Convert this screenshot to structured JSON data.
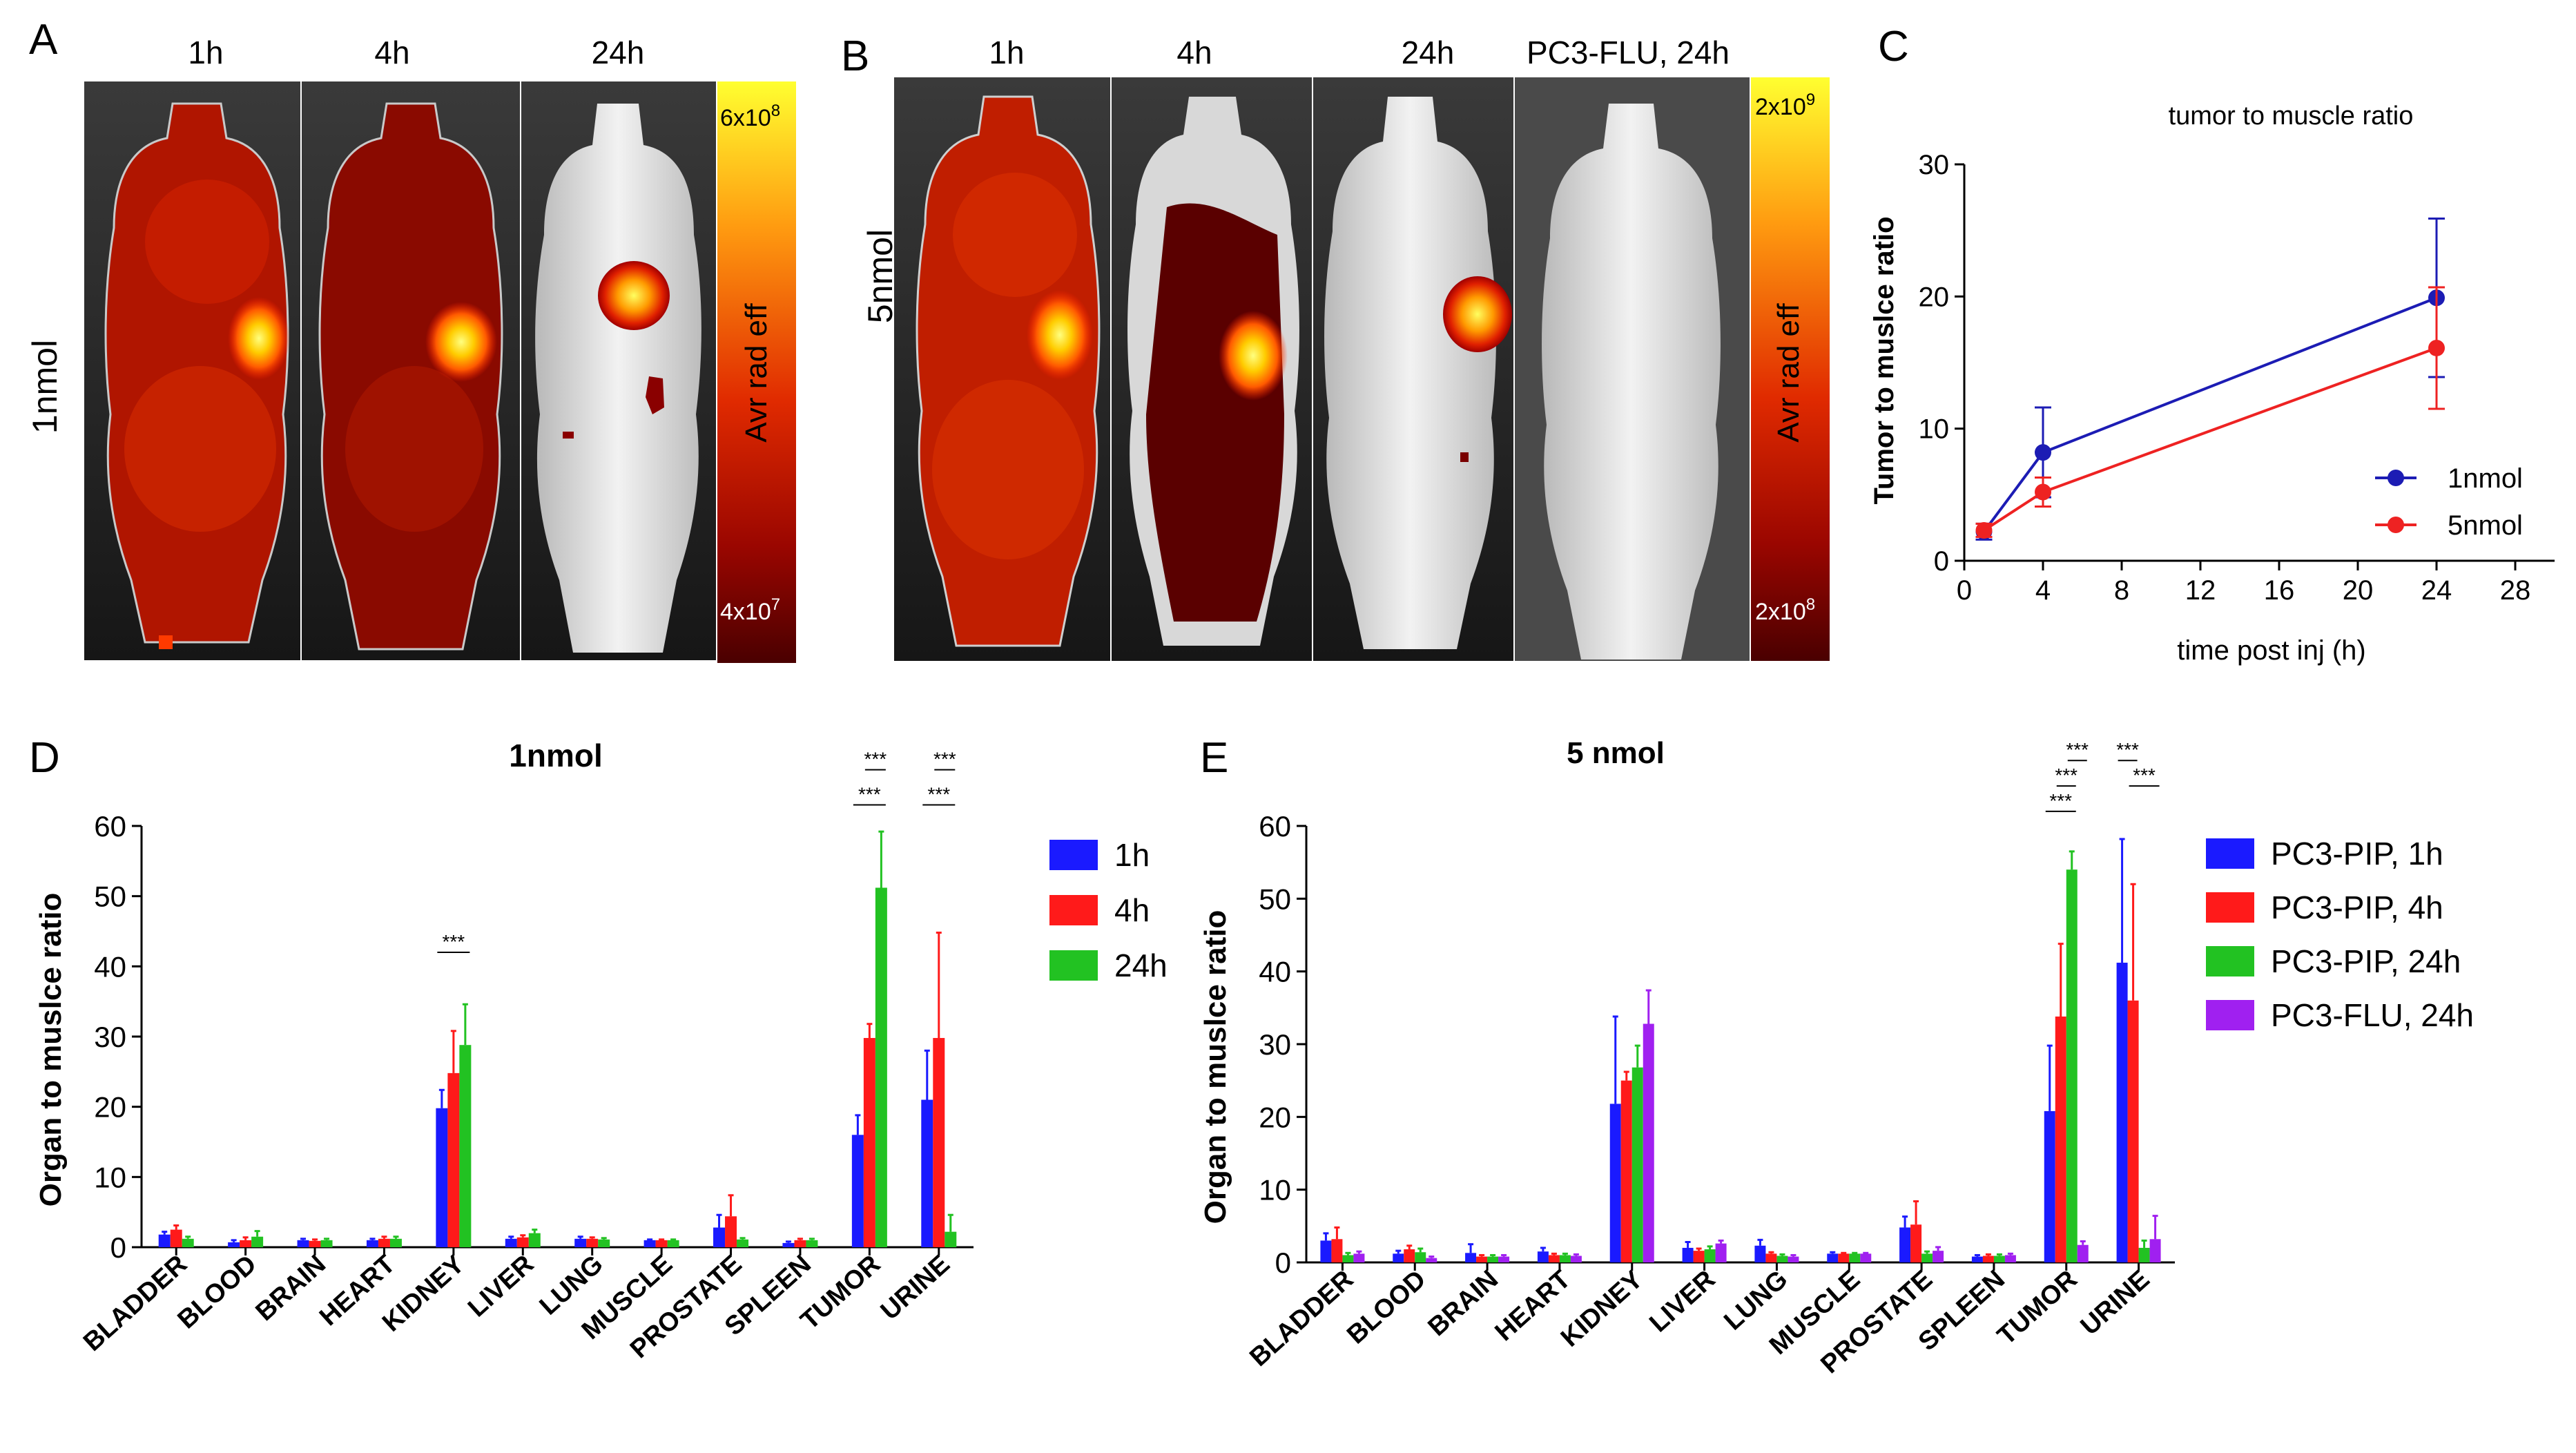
{
  "panel_a": {
    "letter": "A",
    "row_label": "1nmol",
    "timepoints": [
      "1h",
      "4h",
      "24h"
    ],
    "scale_label": "Avr rad eff",
    "scale_max_base": "6x10",
    "scale_max_exp": "8",
    "scale_min_base": "4x10",
    "scale_min_exp": "7"
  },
  "panel_b": {
    "letter": "B",
    "row_label": "5nmol",
    "timepoints": [
      "1h",
      "4h",
      "24h",
      "PC3-FLU, 24h"
    ],
    "scale_label": "Avr rad eff",
    "scale_max_base": "2x10",
    "scale_max_exp": "9",
    "scale_min_base": "2x10",
    "scale_min_exp": "8"
  },
  "colors": {
    "blue": "#1a1aff",
    "red": "#ff1a1a",
    "green": "#22c222",
    "purple": "#a020f0",
    "line_blue": "#1c1cb4",
    "line_red": "#ee2222"
  },
  "chart_data": [
    {
      "id": "C",
      "letter": "C",
      "type": "line",
      "title": "tumor to muscle ratio",
      "xlabel": "time post inj (h)",
      "ylabel": "Tumor to muslce ratio",
      "xlim": [
        0,
        30
      ],
      "ylim": [
        0,
        30
      ],
      "xticks": [
        0,
        4,
        8,
        12,
        16,
        20,
        24,
        28
      ],
      "yticks": [
        0,
        10,
        20,
        30
      ],
      "legend_position": "bottom-right",
      "series": [
        {
          "name": "1nmol",
          "color": "#1c1cb4",
          "x": [
            1,
            4,
            24
          ],
          "y": [
            2.2,
            8.2,
            19.9
          ],
          "err": [
            0.6,
            3.4,
            6.0
          ]
        },
        {
          "name": "5nmol",
          "color": "#ee2222",
          "x": [
            1,
            4,
            24
          ],
          "y": [
            2.3,
            5.2,
            16.1
          ],
          "err": [
            0.5,
            1.1,
            4.6
          ]
        }
      ]
    },
    {
      "id": "D",
      "letter": "D",
      "type": "bar",
      "title": "1nmol",
      "ylabel": "Organ to muslce ratio",
      "ylim": [
        0,
        60
      ],
      "yticks": [
        0,
        10,
        20,
        30,
        40,
        50,
        60
      ],
      "categories": [
        "BLADDER",
        "BLOOD",
        "BRAIN",
        "HEART",
        "KIDNEY",
        "LIVER",
        "LUNG",
        "MUSCLE",
        "PROSTATE",
        "SPLEEN",
        "TUMOR",
        "URINE"
      ],
      "series": [
        {
          "name": "1h",
          "color": "#1a1aff",
          "values": [
            1.8,
            0.7,
            1.0,
            1.0,
            19.8,
            1.2,
            1.2,
            1.0,
            2.8,
            0.6,
            16.0,
            21.0
          ],
          "err": [
            0.4,
            0.3,
            0.2,
            0.2,
            2.6,
            0.3,
            0.3,
            0.1,
            1.8,
            0.2,
            2.8,
            7.0
          ]
        },
        {
          "name": "4h",
          "color": "#ff1a1a",
          "values": [
            2.5,
            1.0,
            0.9,
            1.2,
            24.8,
            1.4,
            1.2,
            1.0,
            4.4,
            1.0,
            29.8,
            29.8
          ],
          "err": [
            0.6,
            0.4,
            0.2,
            0.3,
            6.0,
            0.3,
            0.2,
            0.1,
            3.0,
            0.2,
            2.0,
            15.0
          ]
        },
        {
          "name": "24h",
          "color": "#22c222",
          "values": [
            1.2,
            1.5,
            1.0,
            1.2,
            28.8,
            2.0,
            1.1,
            1.0,
            1.1,
            1.0,
            51.2,
            2.2
          ],
          "err": [
            0.3,
            0.8,
            0.2,
            0.3,
            5.8,
            0.5,
            0.2,
            0.1,
            0.2,
            0.2,
            8.0,
            2.4
          ]
        }
      ],
      "significance": [
        {
          "category": "KIDNEY",
          "from": 0,
          "to": 2,
          "y": 42,
          "label": "***"
        },
        {
          "category": "TUMOR",
          "from": 0,
          "to": 2,
          "y": 63,
          "label": "***"
        },
        {
          "category": "TUMOR",
          "from": 1,
          "to": 2,
          "y": 68,
          "label": "***"
        },
        {
          "category": "URINE",
          "from": 0,
          "to": 2,
          "y": 63,
          "label": "***"
        },
        {
          "category": "URINE",
          "from": 1,
          "to": 2,
          "y": 68,
          "label": "***"
        }
      ]
    },
    {
      "id": "E",
      "letter": "E",
      "type": "bar",
      "title": "5 nmol",
      "ylabel": "Organ to muslce ratio",
      "ylim": [
        0,
        60
      ],
      "yticks": [
        0,
        10,
        20,
        30,
        40,
        50,
        60
      ],
      "categories": [
        "BLADDER",
        "BLOOD",
        "BRAIN",
        "HEART",
        "KIDNEY",
        "LIVER",
        "LUNG",
        "MUSCLE",
        "PROSTATE",
        "SPLEEN",
        "TUMOR",
        "URINE"
      ],
      "series": [
        {
          "name": "PC3-PIP, 1h",
          "color": "#1a1aff",
          "values": [
            3.0,
            1.2,
            1.3,
            1.5,
            21.8,
            2.0,
            2.3,
            1.2,
            4.8,
            0.8,
            20.8,
            41.2
          ],
          "err": [
            1.0,
            0.4,
            1.2,
            0.5,
            12.0,
            0.8,
            0.8,
            0.2,
            1.5,
            0.2,
            9.0,
            17.0
          ]
        },
        {
          "name": "PC3-PIP, 4h",
          "color": "#ff1a1a",
          "values": [
            3.2,
            1.8,
            0.8,
            1.0,
            25.0,
            1.6,
            1.2,
            1.2,
            5.2,
            0.9,
            33.8,
            36.0
          ],
          "err": [
            1.6,
            0.5,
            0.2,
            0.2,
            1.2,
            0.3,
            0.2,
            0.1,
            3.2,
            0.2,
            10.0,
            16.0
          ]
        },
        {
          "name": "PC3-PIP, 24h",
          "color": "#22c222",
          "values": [
            1.0,
            1.4,
            0.8,
            1.0,
            26.8,
            1.8,
            0.9,
            1.2,
            1.2,
            0.9,
            54.0,
            2.0
          ],
          "err": [
            0.3,
            0.5,
            0.2,
            0.2,
            3.0,
            0.4,
            0.2,
            0.1,
            0.3,
            0.2,
            2.5,
            1.0
          ]
        },
        {
          "name": "PC3-FLU, 24h",
          "color": "#a020f0",
          "values": [
            1.2,
            0.6,
            0.8,
            0.9,
            32.8,
            2.6,
            0.8,
            1.2,
            1.6,
            1.0,
            2.4,
            3.2
          ],
          "err": [
            0.3,
            0.2,
            0.2,
            0.2,
            4.6,
            0.4,
            0.2,
            0.1,
            0.5,
            0.2,
            0.5,
            3.2
          ]
        }
      ],
      "significance": [
        {
          "category": "TUMOR",
          "from": 0,
          "to": 2,
          "y": 62,
          "label": "***"
        },
        {
          "category": "TUMOR",
          "from": 1,
          "to": 2,
          "y": 65.5,
          "label": "***"
        },
        {
          "category": "TUMOR",
          "from": 2,
          "to": 3,
          "y": 69,
          "label": "***"
        },
        {
          "category": "URINE",
          "from": 0,
          "to": 1,
          "y": 69,
          "label": "***"
        },
        {
          "category": "URINE",
          "from": 1,
          "to": 3,
          "y": 65.5,
          "label": "***"
        }
      ]
    }
  ]
}
